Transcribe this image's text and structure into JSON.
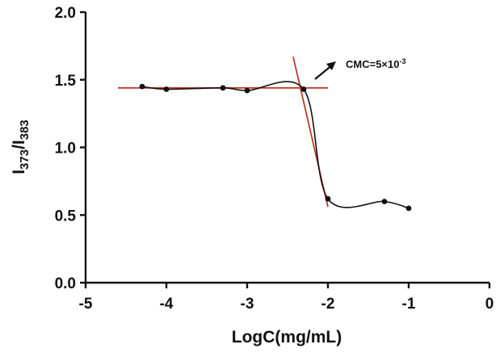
{
  "chart_data": {
    "type": "line",
    "xlabel": "LogC(mg/mL)",
    "ylabel": {
      "main": "I",
      "sub1": "373",
      "sep": "/I",
      "sub2": "383"
    },
    "xlim": [
      -5,
      0
    ],
    "ylim": [
      0.0,
      2.0
    ],
    "xticks": [
      -5,
      -4,
      -3,
      -2,
      -1,
      0
    ],
    "xtick_labels": [
      "-5",
      "-4",
      "-3",
      "-2",
      "-1",
      "0"
    ],
    "yticks": [
      0.0,
      0.5,
      1.0,
      1.5,
      2.0
    ],
    "ytick_labels": [
      "0.0",
      "0.5",
      "1.0",
      "1.5",
      "2.0"
    ],
    "grid": false,
    "series": [
      {
        "color": "#111111",
        "x": [
          -4.3,
          -4.0,
          -3.3,
          -3.0,
          -2.3,
          -2.0,
          -1.3,
          -1.0
        ],
        "y": [
          1.45,
          1.43,
          1.44,
          1.42,
          1.43,
          0.62,
          0.6,
          0.55
        ]
      }
    ],
    "fit_lines": [
      {
        "color": "#c0392b",
        "x": [
          -4.6,
          -2.0
        ],
        "y": [
          1.44,
          1.44
        ]
      },
      {
        "color": "#c0392b",
        "x": [
          -2.43,
          -2.0
        ],
        "y": [
          1.67,
          0.56
        ]
      }
    ],
    "annotation": {
      "text_main": "CMC=5×10",
      "text_sup": "-3"
    }
  }
}
